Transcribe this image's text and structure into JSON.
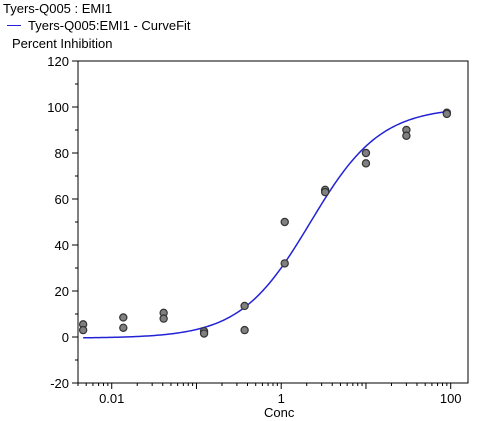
{
  "chart_data": {
    "type": "scatter",
    "title": "Tyers-Q005 : EMI1",
    "ylabel": "Percent Inhibition",
    "xlabel": "Conc",
    "xscale": "log",
    "xlim": [
      0.004,
      160
    ],
    "ylim": [
      -20,
      120
    ],
    "grid": false,
    "legend_position": "top-left",
    "y_ticks": [
      -20,
      0,
      20,
      40,
      60,
      80,
      100,
      120
    ],
    "x_ticks": [
      {
        "value": 0.01,
        "label": "0.01"
      },
      {
        "value": 1,
        "label": "1"
      },
      {
        "value": 100,
        "label": "100"
      }
    ],
    "series": [
      {
        "name": "Tyers-Q005:EMI1 - CurveFit",
        "kind": "line",
        "color": "#2323d6",
        "fit": {
          "model": "four-parameter logistic",
          "bottom": -0.5,
          "top": 100,
          "ec50": 2.2,
          "hill": 1.05
        },
        "x_range": [
          0.0046,
          100
        ]
      },
      {
        "name": "",
        "kind": "points",
        "color": "#808080",
        "points": [
          {
            "x": 0.0046,
            "y": 5.5
          },
          {
            "x": 0.0046,
            "y": 3
          },
          {
            "x": 0.0137,
            "y": 8.5
          },
          {
            "x": 0.0137,
            "y": 4
          },
          {
            "x": 0.041,
            "y": 10.5
          },
          {
            "x": 0.041,
            "y": 8
          },
          {
            "x": 0.123,
            "y": 2.5
          },
          {
            "x": 0.123,
            "y": 1.5
          },
          {
            "x": 0.37,
            "y": 13.5
          },
          {
            "x": 0.37,
            "y": 3
          },
          {
            "x": 1.1,
            "y": 50
          },
          {
            "x": 1.1,
            "y": 32
          },
          {
            "x": 3.3,
            "y": 64
          },
          {
            "x": 3.3,
            "y": 63
          },
          {
            "x": 10,
            "y": 80
          },
          {
            "x": 10,
            "y": 75.5
          },
          {
            "x": 30,
            "y": 90
          },
          {
            "x": 30,
            "y": 87.5
          },
          {
            "x": 90,
            "y": 97.5
          },
          {
            "x": 90,
            "y": 97
          }
        ]
      }
    ]
  }
}
